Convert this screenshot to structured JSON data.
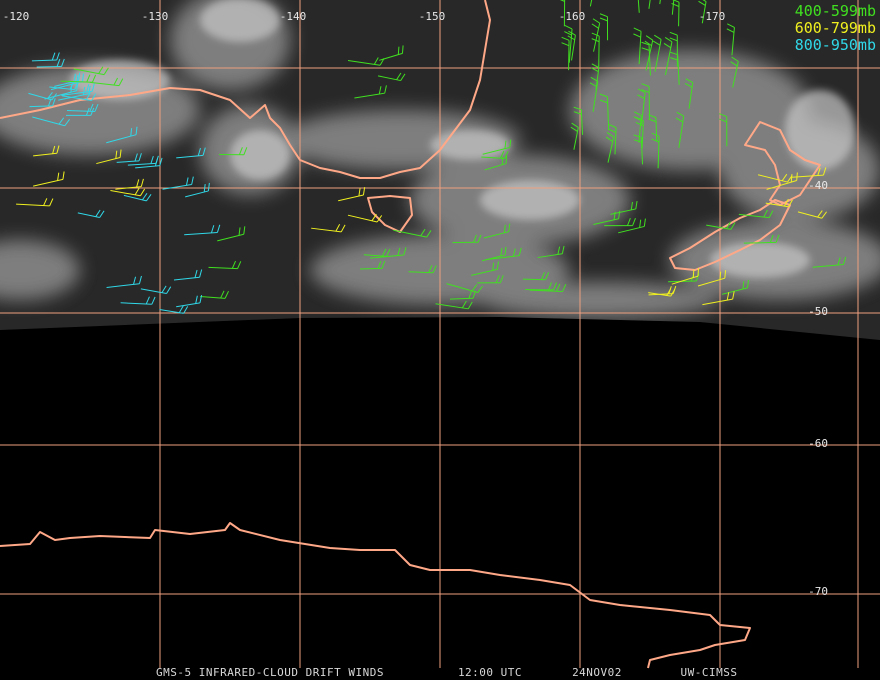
{
  "map": {
    "longitude_labels": [
      "-120",
      "-130",
      "-140",
      "-150",
      "-160",
      "-170"
    ],
    "latitude_labels": [
      "-40",
      "-50",
      "-60",
      "-70"
    ],
    "legend": [
      {
        "label": "400-599mb",
        "color": "#40e020"
      },
      {
        "label": "600-799mb",
        "color": "#f0f020"
      },
      {
        "label": "800-950mb",
        "color": "#30d8e8"
      }
    ],
    "footer": [
      "GMS-5 INFRARED-CLOUD DRIFT WINDS",
      "12:00 UTC",
      "24NOV02",
      "UW-CIMSS"
    ]
  }
}
